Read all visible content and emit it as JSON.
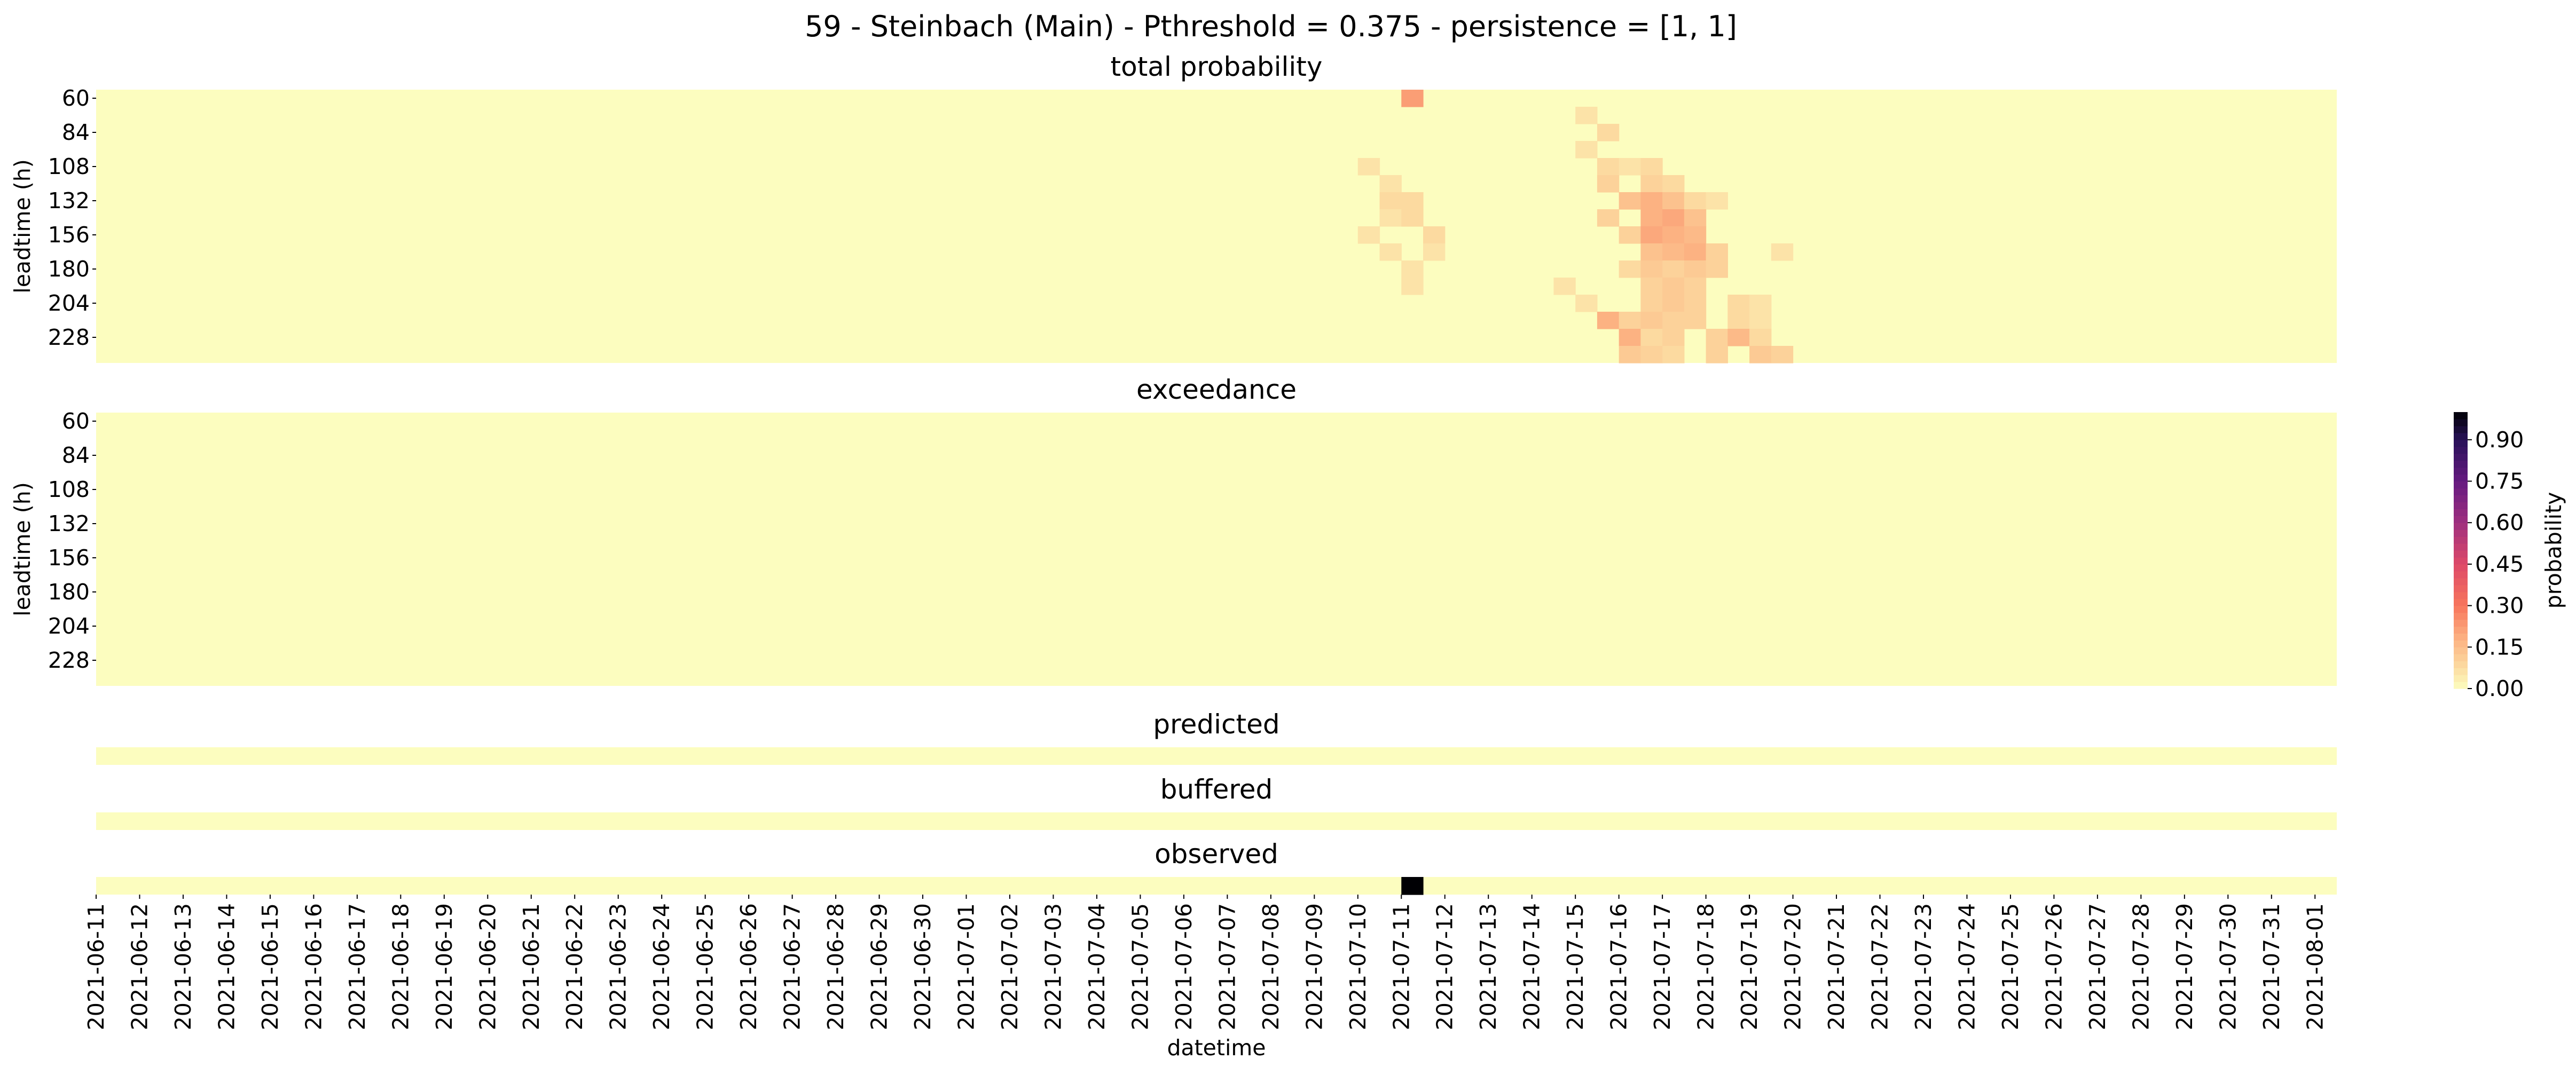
{
  "chart_data": {
    "type": "heatmap",
    "title": "59 - Steinbach (Main) - Pthreshold = 0.375 - persistence = [1, 1]",
    "dates": [
      "2021-06-11",
      "2021-06-12",
      "2021-06-13",
      "2021-06-14",
      "2021-06-15",
      "2021-06-16",
      "2021-06-17",
      "2021-06-18",
      "2021-06-19",
      "2021-06-20",
      "2021-06-21",
      "2021-06-22",
      "2021-06-23",
      "2021-06-24",
      "2021-06-25",
      "2021-06-26",
      "2021-06-27",
      "2021-06-28",
      "2021-06-29",
      "2021-06-30",
      "2021-07-01",
      "2021-07-02",
      "2021-07-03",
      "2021-07-04",
      "2021-07-05",
      "2021-07-06",
      "2021-07-07",
      "2021-07-08",
      "2021-07-09",
      "2021-07-10",
      "2021-07-11",
      "2021-07-12",
      "2021-07-13",
      "2021-07-14",
      "2021-07-15",
      "2021-07-16",
      "2021-07-17",
      "2021-07-18",
      "2021-07-19",
      "2021-07-20",
      "2021-07-21",
      "2021-07-22",
      "2021-07-23",
      "2021-07-24",
      "2021-07-25",
      "2021-07-26",
      "2021-07-27",
      "2021-07-28",
      "2021-07-29",
      "2021-07-30",
      "2021-07-31",
      "2021-08-01"
    ],
    "xlabel": "datetime",
    "ylabel": "leadtime (h)",
    "leadtimes": [
      60,
      72,
      84,
      96,
      108,
      120,
      132,
      144,
      156,
      168,
      180,
      192,
      204,
      216,
      228,
      240
    ],
    "ytick_labels": [
      "60",
      "84",
      "108",
      "132",
      "156",
      "180",
      "204",
      "228"
    ],
    "steps_per_day": 2,
    "colorbar": {
      "label": "probability",
      "colormap": "magma_r",
      "vmin": 0.0,
      "vmax": 1.0,
      "ticks": [
        "0.00",
        "0.15",
        "0.30",
        "0.45",
        "0.60",
        "0.75",
        "0.90"
      ]
    },
    "panels": [
      {
        "title": "total probability",
        "rows": 16,
        "default": 0.0,
        "cells": [
          {
            "date": "2021-07-11",
            "step": 0,
            "leadtime": 60,
            "p": 0.22
          },
          {
            "date": "2021-07-10",
            "step": 0,
            "leadtime": 108,
            "p": 0.06
          },
          {
            "date": "2021-07-10",
            "step": 1,
            "leadtime": 120,
            "p": 0.06
          },
          {
            "date": "2021-07-10",
            "step": 1,
            "leadtime": 132,
            "p": 0.08
          },
          {
            "date": "2021-07-11",
            "step": 0,
            "leadtime": 132,
            "p": 0.08
          },
          {
            "date": "2021-07-10",
            "step": 1,
            "leadtime": 144,
            "p": 0.06
          },
          {
            "date": "2021-07-11",
            "step": 0,
            "leadtime": 144,
            "p": 0.08
          },
          {
            "date": "2021-07-10",
            "step": 0,
            "leadtime": 156,
            "p": 0.06
          },
          {
            "date": "2021-07-11",
            "step": 1,
            "leadtime": 156,
            "p": 0.08
          },
          {
            "date": "2021-07-10",
            "step": 1,
            "leadtime": 168,
            "p": 0.06
          },
          {
            "date": "2021-07-11",
            "step": 1,
            "leadtime": 168,
            "p": 0.06
          },
          {
            "date": "2021-07-11",
            "step": 0,
            "leadtime": 180,
            "p": 0.06
          },
          {
            "date": "2021-07-11",
            "step": 0,
            "leadtime": 192,
            "p": 0.06
          },
          {
            "date": "2021-07-15",
            "step": 0,
            "leadtime": 72,
            "p": 0.06
          },
          {
            "date": "2021-07-15",
            "step": 1,
            "leadtime": 84,
            "p": 0.08
          },
          {
            "date": "2021-07-15",
            "step": 0,
            "leadtime": 96,
            "p": 0.06
          },
          {
            "date": "2021-07-15",
            "step": 1,
            "leadtime": 108,
            "p": 0.08
          },
          {
            "date": "2021-07-16",
            "step": 0,
            "leadtime": 108,
            "p": 0.06
          },
          {
            "date": "2021-07-16",
            "step": 1,
            "leadtime": 108,
            "p": 0.08
          },
          {
            "date": "2021-07-15",
            "step": 1,
            "leadtime": 120,
            "p": 0.1
          },
          {
            "date": "2021-07-16",
            "step": 1,
            "leadtime": 120,
            "p": 0.1
          },
          {
            "date": "2021-07-17",
            "step": 0,
            "leadtime": 120,
            "p": 0.08
          },
          {
            "date": "2021-07-16",
            "step": 0,
            "leadtime": 132,
            "p": 0.14
          },
          {
            "date": "2021-07-16",
            "step": 1,
            "leadtime": 132,
            "p": 0.18
          },
          {
            "date": "2021-07-17",
            "step": 0,
            "leadtime": 132,
            "p": 0.14
          },
          {
            "date": "2021-07-17",
            "step": 1,
            "leadtime": 132,
            "p": 0.08
          },
          {
            "date": "2021-07-18",
            "step": 0,
            "leadtime": 132,
            "p": 0.06
          },
          {
            "date": "2021-07-15",
            "step": 1,
            "leadtime": 144,
            "p": 0.1
          },
          {
            "date": "2021-07-16",
            "step": 1,
            "leadtime": 144,
            "p": 0.18
          },
          {
            "date": "2021-07-17",
            "step": 0,
            "leadtime": 144,
            "p": 0.2
          },
          {
            "date": "2021-07-17",
            "step": 1,
            "leadtime": 144,
            "p": 0.14
          },
          {
            "date": "2021-07-16",
            "step": 0,
            "leadtime": 156,
            "p": 0.1
          },
          {
            "date": "2021-07-16",
            "step": 1,
            "leadtime": 156,
            "p": 0.2
          },
          {
            "date": "2021-07-17",
            "step": 0,
            "leadtime": 156,
            "p": 0.18
          },
          {
            "date": "2021-07-17",
            "step": 1,
            "leadtime": 156,
            "p": 0.16
          },
          {
            "date": "2021-07-16",
            "step": 1,
            "leadtime": 168,
            "p": 0.14
          },
          {
            "date": "2021-07-17",
            "step": 0,
            "leadtime": 168,
            "p": 0.16
          },
          {
            "date": "2021-07-17",
            "step": 1,
            "leadtime": 168,
            "p": 0.18
          },
          {
            "date": "2021-07-18",
            "step": 0,
            "leadtime": 168,
            "p": 0.1
          },
          {
            "date": "2021-07-19",
            "step": 1,
            "leadtime": 168,
            "p": 0.06
          },
          {
            "date": "2021-07-16",
            "step": 0,
            "leadtime": 180,
            "p": 0.08
          },
          {
            "date": "2021-07-16",
            "step": 1,
            "leadtime": 180,
            "p": 0.12
          },
          {
            "date": "2021-07-17",
            "step": 0,
            "leadtime": 180,
            "p": 0.1
          },
          {
            "date": "2021-07-17",
            "step": 1,
            "leadtime": 180,
            "p": 0.12
          },
          {
            "date": "2021-07-18",
            "step": 0,
            "leadtime": 180,
            "p": 0.1
          },
          {
            "date": "2021-07-14",
            "step": 1,
            "leadtime": 192,
            "p": 0.06
          },
          {
            "date": "2021-07-16",
            "step": 1,
            "leadtime": 192,
            "p": 0.1
          },
          {
            "date": "2021-07-17",
            "step": 0,
            "leadtime": 192,
            "p": 0.12
          },
          {
            "date": "2021-07-17",
            "step": 1,
            "leadtime": 192,
            "p": 0.1
          },
          {
            "date": "2021-07-15",
            "step": 0,
            "leadtime": 204,
            "p": 0.06
          },
          {
            "date": "2021-07-16",
            "step": 1,
            "leadtime": 204,
            "p": 0.1
          },
          {
            "date": "2021-07-17",
            "step": 0,
            "leadtime": 204,
            "p": 0.12
          },
          {
            "date": "2021-07-17",
            "step": 1,
            "leadtime": 204,
            "p": 0.1
          },
          {
            "date": "2021-07-18",
            "step": 1,
            "leadtime": 204,
            "p": 0.08
          },
          {
            "date": "2021-07-19",
            "step": 0,
            "leadtime": 204,
            "p": 0.06
          },
          {
            "date": "2021-07-15",
            "step": 1,
            "leadtime": 216,
            "p": 0.18
          },
          {
            "date": "2021-07-16",
            "step": 0,
            "leadtime": 216,
            "p": 0.1
          },
          {
            "date": "2021-07-16",
            "step": 1,
            "leadtime": 216,
            "p": 0.12
          },
          {
            "date": "2021-07-17",
            "step": 0,
            "leadtime": 216,
            "p": 0.1
          },
          {
            "date": "2021-07-17",
            "step": 1,
            "leadtime": 216,
            "p": 0.1
          },
          {
            "date": "2021-07-18",
            "step": 1,
            "leadtime": 216,
            "p": 0.08
          },
          {
            "date": "2021-07-19",
            "step": 0,
            "leadtime": 216,
            "p": 0.06
          },
          {
            "date": "2021-07-16",
            "step": 0,
            "leadtime": 228,
            "p": 0.18
          },
          {
            "date": "2021-07-16",
            "step": 1,
            "leadtime": 228,
            "p": 0.08
          },
          {
            "date": "2021-07-17",
            "step": 0,
            "leadtime": 228,
            "p": 0.1
          },
          {
            "date": "2021-07-18",
            "step": 0,
            "leadtime": 228,
            "p": 0.1
          },
          {
            "date": "2021-07-18",
            "step": 1,
            "leadtime": 228,
            "p": 0.16
          },
          {
            "date": "2021-07-19",
            "step": 0,
            "leadtime": 228,
            "p": 0.08
          },
          {
            "date": "2021-07-16",
            "step": 0,
            "leadtime": 240,
            "p": 0.12
          },
          {
            "date": "2021-07-16",
            "step": 1,
            "leadtime": 240,
            "p": 0.1
          },
          {
            "date": "2021-07-17",
            "step": 0,
            "leadtime": 240,
            "p": 0.08
          },
          {
            "date": "2021-07-18",
            "step": 0,
            "leadtime": 240,
            "p": 0.1
          },
          {
            "date": "2021-07-19",
            "step": 0,
            "leadtime": 240,
            "p": 0.12
          },
          {
            "date": "2021-07-19",
            "step": 1,
            "leadtime": 240,
            "p": 0.1
          }
        ]
      },
      {
        "title": "exceedance",
        "rows": 16,
        "default": 0.0,
        "cells": []
      },
      {
        "title": "predicted",
        "rows": 1,
        "default": 0.0,
        "cells": []
      },
      {
        "title": "buffered",
        "rows": 1,
        "default": 0.0,
        "cells": []
      },
      {
        "title": "observed",
        "rows": 1,
        "default": 0.0,
        "cells": [
          {
            "date": "2021-07-11",
            "step": 0,
            "p": 1.0
          }
        ]
      }
    ]
  }
}
